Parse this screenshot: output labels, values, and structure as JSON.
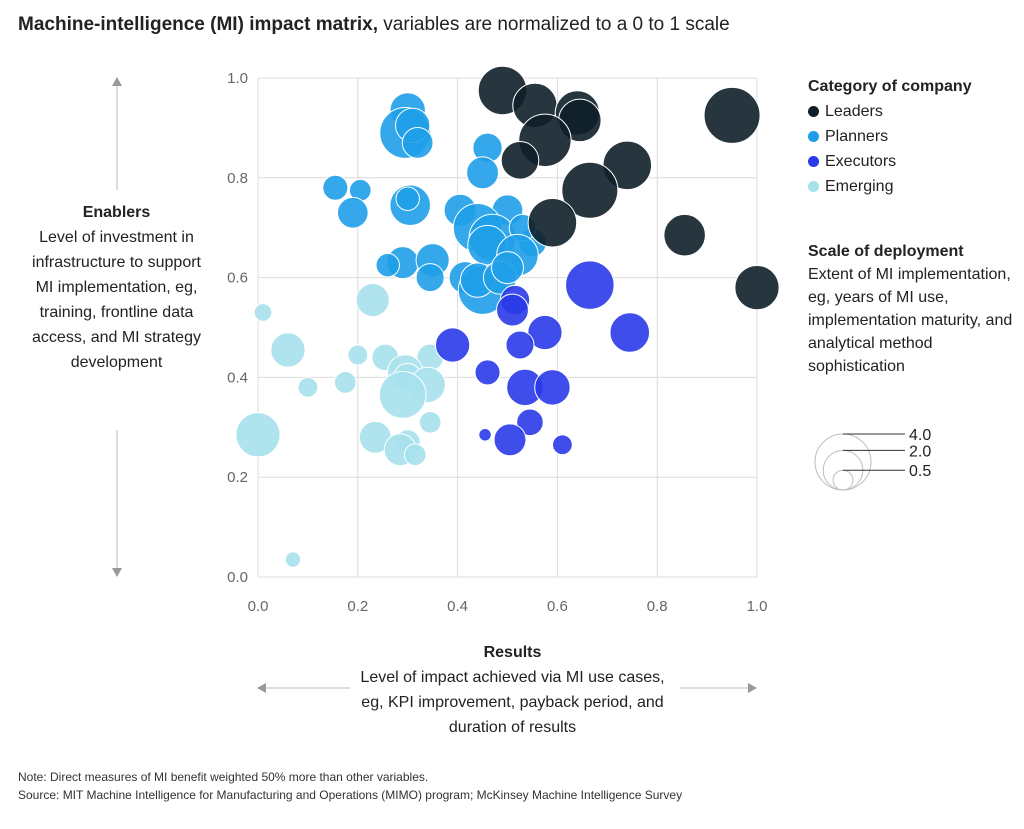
{
  "title_bold": "Machine-intelligence (MI) impact matrix,",
  "title_rest": " variables are normalized to a 0 to 1 scale",
  "ylabel_title": "Enablers",
  "ylabel_desc": "Level of investment in infrastructure to support MI implementation, eg, training, frontline data access, and MI strategy development",
  "xlabel_title": "Results",
  "xlabel_desc": "Level of impact achieved via MI use cases, eg, KPI improvement, payback period, and duration of results",
  "legend": {
    "title": "Category of company",
    "items": [
      {
        "label": "Leaders",
        "color": "#0f1f2a"
      },
      {
        "label": "Planners",
        "color": "#1e9ee8"
      },
      {
        "label": "Executors",
        "color": "#2a3ae8"
      },
      {
        "label": "Emerging",
        "color": "#a6e1ec"
      }
    ]
  },
  "scale_legend": {
    "title": "Scale of deployment",
    "desc": "Extent of MI implementation, eg, years of MI use, implementation maturity, and analytical method sophistication",
    "values": [
      "4.0",
      "2.0",
      "0.5"
    ]
  },
  "note": "Note: Direct measures of MI benefit weighted 50% more than other variables.",
  "source": "Source: MIT Machine Intelligence for Manufacturing and Operations (MIMO) program; McKinsey Machine Intelligence Survey",
  "chart_data": {
    "type": "scatter",
    "xlim": [
      0,
      1
    ],
    "ylim": [
      0,
      1
    ],
    "xticks": [
      "0.0",
      "0.2",
      "0.4",
      "0.6",
      "0.8",
      "1.0"
    ],
    "yticks": [
      "0.0",
      "0.2",
      "0.4",
      "0.6",
      "0.8",
      "1.0"
    ],
    "grid": true,
    "size_variable": "Scale of deployment",
    "series": [
      {
        "name": "Leaders",
        "color": "#0f1f2a",
        "points": [
          [
            0.49,
            0.975,
            3.0
          ],
          [
            0.555,
            0.945,
            2.5
          ],
          [
            0.64,
            0.93,
            2.5
          ],
          [
            0.645,
            0.915,
            2.3
          ],
          [
            0.95,
            0.925,
            4.0
          ],
          [
            0.575,
            0.875,
            3.5
          ],
          [
            0.525,
            0.835,
            1.8
          ],
          [
            0.74,
            0.825,
            3.0
          ],
          [
            0.665,
            0.775,
            4.0
          ],
          [
            0.59,
            0.71,
            3.0
          ],
          [
            0.855,
            0.685,
            2.2
          ],
          [
            1.0,
            0.58,
            2.5
          ]
        ]
      },
      {
        "name": "Planners",
        "color": "#1e9ee8",
        "points": [
          [
            0.3,
            0.935,
            1.6
          ],
          [
            0.295,
            0.89,
            3.3
          ],
          [
            0.31,
            0.905,
            1.5
          ],
          [
            0.32,
            0.87,
            1.2
          ],
          [
            0.46,
            0.86,
            1.1
          ],
          [
            0.45,
            0.81,
            1.3
          ],
          [
            0.155,
            0.78,
            0.8
          ],
          [
            0.205,
            0.775,
            0.6
          ],
          [
            0.305,
            0.745,
            2.1
          ],
          [
            0.3,
            0.758,
            0.7
          ],
          [
            0.19,
            0.73,
            1.2
          ],
          [
            0.405,
            0.735,
            1.3
          ],
          [
            0.5,
            0.735,
            1.2
          ],
          [
            0.44,
            0.7,
            3.0
          ],
          [
            0.47,
            0.68,
            2.8
          ],
          [
            0.46,
            0.665,
            2.0
          ],
          [
            0.55,
            0.67,
            1.0
          ],
          [
            0.53,
            0.7,
            0.9
          ],
          [
            0.29,
            0.63,
            1.3
          ],
          [
            0.26,
            0.625,
            0.7
          ],
          [
            0.35,
            0.635,
            1.4
          ],
          [
            0.52,
            0.645,
            2.2
          ],
          [
            0.415,
            0.6,
            1.3
          ],
          [
            0.345,
            0.6,
            1.0
          ],
          [
            0.45,
            0.575,
            3.0
          ],
          [
            0.44,
            0.595,
            1.5
          ],
          [
            0.485,
            0.6,
            1.4
          ],
          [
            0.5,
            0.62,
            1.3
          ]
        ]
      },
      {
        "name": "Executors",
        "color": "#2a3ae8",
        "points": [
          [
            0.665,
            0.585,
            3.0
          ],
          [
            0.515,
            0.555,
            1.1
          ],
          [
            0.51,
            0.535,
            1.3
          ],
          [
            0.745,
            0.49,
            2.0
          ],
          [
            0.575,
            0.49,
            1.5
          ],
          [
            0.39,
            0.465,
            1.5
          ],
          [
            0.525,
            0.465,
            1.0
          ],
          [
            0.46,
            0.41,
            0.8
          ],
          [
            0.535,
            0.38,
            1.7
          ],
          [
            0.59,
            0.38,
            1.6
          ],
          [
            0.545,
            0.31,
            0.9
          ],
          [
            0.455,
            0.285,
            0.2
          ],
          [
            0.505,
            0.275,
            1.3
          ],
          [
            0.61,
            0.265,
            0.5
          ]
        ]
      },
      {
        "name": "Emerging",
        "color": "#a6e1ec",
        "points": [
          [
            0.01,
            0.53,
            0.4
          ],
          [
            0.23,
            0.555,
            1.4
          ],
          [
            0.06,
            0.455,
            1.5
          ],
          [
            0.2,
            0.445,
            0.5
          ],
          [
            0.255,
            0.44,
            0.9
          ],
          [
            0.345,
            0.44,
            0.9
          ],
          [
            0.295,
            0.41,
            1.6
          ],
          [
            0.3,
            0.4,
            1.0
          ],
          [
            0.1,
            0.38,
            0.5
          ],
          [
            0.175,
            0.39,
            0.6
          ],
          [
            0.34,
            0.385,
            1.6
          ],
          [
            0.29,
            0.365,
            2.8
          ],
          [
            0.345,
            0.31,
            0.6
          ],
          [
            0.0,
            0.285,
            2.5
          ],
          [
            0.235,
            0.28,
            1.3
          ],
          [
            0.3,
            0.27,
            0.8
          ],
          [
            0.285,
            0.255,
            1.3
          ],
          [
            0.315,
            0.245,
            0.6
          ],
          [
            0.07,
            0.035,
            0.3
          ]
        ]
      }
    ]
  }
}
